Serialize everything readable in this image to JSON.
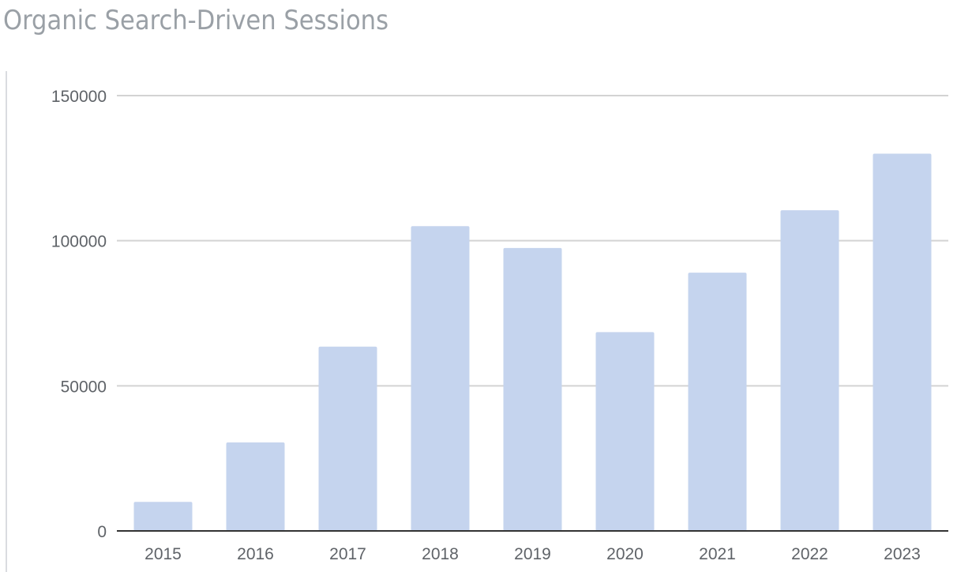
{
  "chart_data": {
    "type": "bar",
    "title": "Organic Search-Driven Sessions",
    "xlabel": "",
    "ylabel": "",
    "categories": [
      "2015",
      "2016",
      "2017",
      "2018",
      "2019",
      "2020",
      "2021",
      "2022",
      "2023"
    ],
    "values": [
      10000,
      30500,
      63500,
      105000,
      97500,
      68500,
      89000,
      110500,
      130000
    ],
    "ylim": [
      0,
      150000
    ],
    "yticks": [
      "0",
      "50000",
      "100000",
      "150000"
    ],
    "grid": true,
    "legend": "none",
    "bar_color": "#c5d4ee",
    "gridline_color": "#d3d3d3",
    "baseline_color": "#333333"
  }
}
